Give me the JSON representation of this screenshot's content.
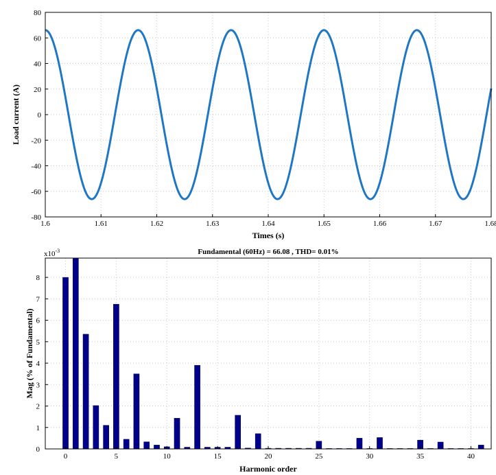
{
  "chart_data": [
    {
      "type": "line",
      "title": "",
      "xlabel": "Times (s)",
      "ylabel": "Load current (A)",
      "xlim": [
        1.6,
        1.68
      ],
      "ylim": [
        -80,
        80
      ],
      "x_ticks": [
        1.6,
        1.61,
        1.62,
        1.63,
        1.64,
        1.65,
        1.66,
        1.67,
        1.68
      ],
      "x_tick_labels": [
        "1.6",
        "1.61",
        "1.62",
        "1.63",
        "1.64",
        "1.65",
        "1.66",
        "1.67",
        "1.68"
      ],
      "y_ticks": [
        -80,
        -60,
        -40,
        -20,
        0,
        20,
        40,
        60,
        80
      ],
      "y_tick_labels": [
        "-80",
        "-60",
        "-40",
        "-20",
        "0",
        "20",
        "40",
        "60",
        "80"
      ],
      "grid": true,
      "series_color": "#1f77c4",
      "series": [
        {
          "amplitude": 66.08,
          "frequency_hz": 60,
          "x": [
            1.6,
            1.6042,
            1.6083,
            1.6125,
            1.6167,
            1.6208,
            1.625,
            1.6292,
            1.6333,
            1.6375,
            1.6417,
            1.6458,
            1.65,
            1.6542,
            1.6583,
            1.6625,
            1.6667,
            1.6708,
            1.675,
            1.6792,
            1.68
          ],
          "y": [
            66.08,
            0,
            -66.08,
            0,
            66.08,
            0,
            -66.08,
            0,
            66.08,
            0,
            -66.08,
            0,
            66.08,
            0,
            -66.08,
            0,
            66.08,
            0,
            -66.08,
            0,
            20.4
          ]
        }
      ]
    },
    {
      "type": "bar",
      "title": "Fundamental (60Hz) = 66.08 , THD= 0.01%",
      "xlabel": "Harmonic order",
      "ylabel": "Mag (% of Fundamental)",
      "y_multiplier": "x10",
      "y_multiplier_exponent": "-3",
      "xlim": [
        -2,
        42
      ],
      "ylim": [
        0,
        8.9
      ],
      "x_ticks": [
        0,
        5,
        10,
        15,
        20,
        25,
        30,
        35,
        40
      ],
      "x_tick_labels": [
        "0",
        "5",
        "10",
        "15",
        "20",
        "25",
        "30",
        "35",
        "40"
      ],
      "y_ticks": [
        0,
        1,
        2,
        3,
        4,
        5,
        6,
        7,
        8
      ],
      "y_tick_labels": [
        "0",
        "1",
        "2",
        "3",
        "4",
        "5",
        "6",
        "7",
        "8"
      ],
      "grid": true,
      "bar_color": "#00008b",
      "categories": [
        0,
        1,
        2,
        3,
        4,
        5,
        6,
        7,
        8,
        9,
        10,
        11,
        12,
        13,
        14,
        15,
        16,
        17,
        18,
        19,
        20,
        21,
        22,
        23,
        24,
        25,
        26,
        27,
        28,
        29,
        30,
        31,
        32,
        33,
        34,
        35,
        36,
        37,
        38,
        39,
        40,
        41
      ],
      "values": [
        8.0,
        8.9,
        5.35,
        2.02,
        1.1,
        6.75,
        0.45,
        3.5,
        0.33,
        0.18,
        0.1,
        1.43,
        0.08,
        3.9,
        0.08,
        0.08,
        0.08,
        1.57,
        0.04,
        0.71,
        0.03,
        0.03,
        0.03,
        0.03,
        0.03,
        0.36,
        0.02,
        0.02,
        0.02,
        0.5,
        0.02,
        0.53,
        0.02,
        0.02,
        0.02,
        0.41,
        0.02,
        0.32,
        0.02,
        0.02,
        0.02,
        0.18
      ]
    }
  ]
}
